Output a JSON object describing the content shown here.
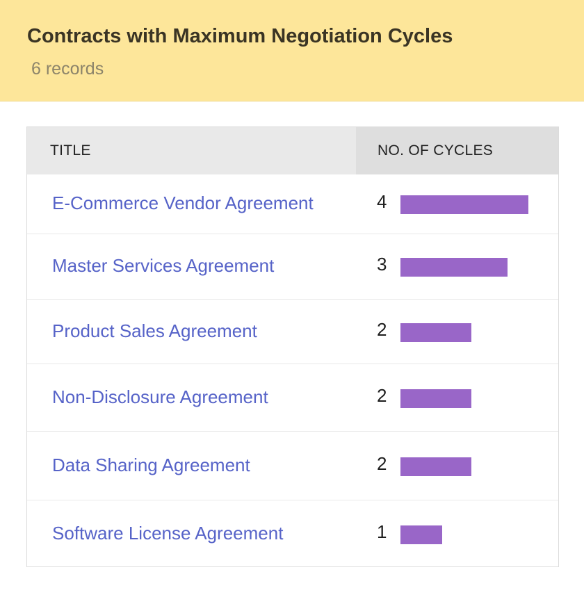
{
  "header": {
    "title": "Contracts with Maximum Negotiation Cycles",
    "subtitle": "6 records"
  },
  "table": {
    "columns": [
      "TITLE",
      "NO. OF CYCLES"
    ],
    "bar_color": "#9966c8",
    "link_color": "#5663c8",
    "max_value": 4,
    "rows": [
      {
        "title": "E-Commerce Vendor Agreement",
        "cycles": 4
      },
      {
        "title": "Master Services Agreement",
        "cycles": 3
      },
      {
        "title": "Product Sales Agreement",
        "cycles": 2
      },
      {
        "title": "Non-Disclosure Agreement",
        "cycles": 2
      },
      {
        "title": "Data Sharing Agreement",
        "cycles": 2
      },
      {
        "title": "Software License Agreement",
        "cycles": 1
      }
    ]
  }
}
